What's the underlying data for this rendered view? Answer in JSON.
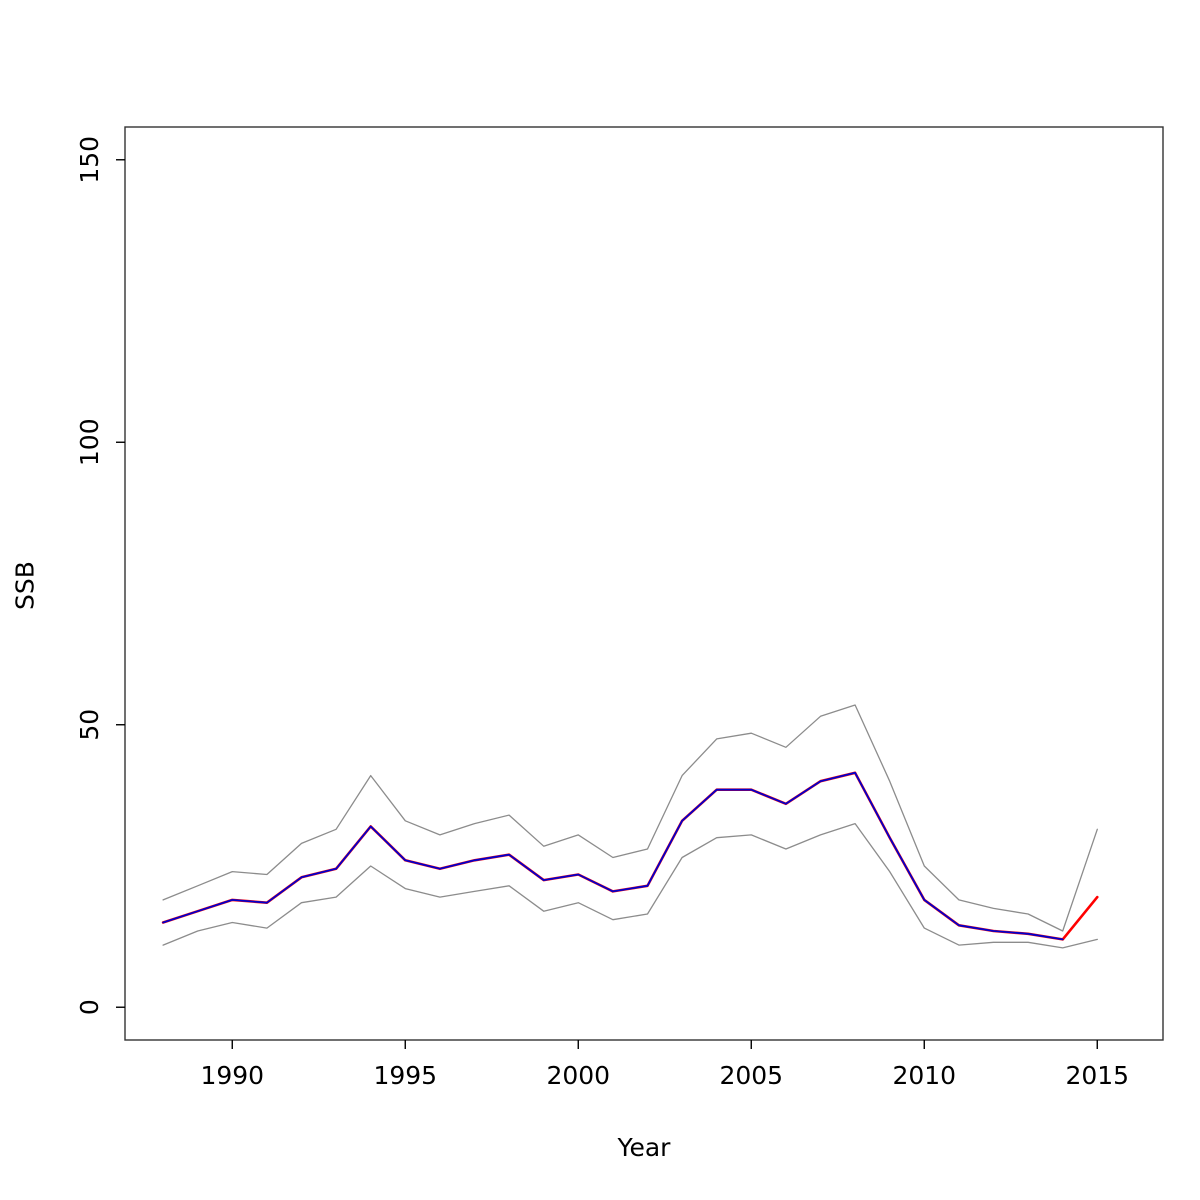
{
  "chart_data": {
    "type": "line",
    "title": "",
    "xlabel": "Year",
    "ylabel": "SSB",
    "grid": false,
    "legend": "none",
    "xlim": [
      1986.9,
      2016.9
    ],
    "ylim": [
      -5.8,
      155.8
    ],
    "xticks": [
      1990,
      1995,
      2000,
      2005,
      2010,
      2015
    ],
    "yticks": [
      0,
      50,
      100,
      150
    ],
    "x": [
      1988,
      1989,
      1990,
      1991,
      1992,
      1993,
      1994,
      1995,
      1996,
      1997,
      1998,
      1999,
      2000,
      2001,
      2002,
      2003,
      2004,
      2005,
      2006,
      2007,
      2008,
      2009,
      2010,
      2011,
      2012,
      2013,
      2014,
      2015
    ],
    "series": [
      {
        "name": "upper-ci",
        "color": "#8C8C8C",
        "width": 1.3,
        "values": [
          19,
          21.5,
          24,
          23.5,
          29,
          31.5,
          41,
          33,
          30.5,
          32.5,
          34,
          28.5,
          30.5,
          26.5,
          28,
          41,
          47.5,
          48.5,
          46,
          51.5,
          53.5,
          40,
          25,
          19,
          17.5,
          16.5,
          13.5,
          31.5
        ]
      },
      {
        "name": "lower-ci",
        "color": "#8C8C8C",
        "width": 1.3,
        "values": [
          11,
          13.5,
          15,
          14,
          18.5,
          19.5,
          25,
          21,
          19.5,
          20.5,
          21.5,
          17,
          18.5,
          15.5,
          16.5,
          26.5,
          30,
          30.5,
          28,
          30.5,
          32.5,
          24,
          14,
          11,
          11.5,
          11.5,
          10.5,
          12
        ]
      },
      {
        "name": "ssb-estimate-red",
        "color": "#FF0000",
        "width": 2.6,
        "values": [
          15,
          17,
          19,
          18.5,
          23,
          24.5,
          32,
          26,
          24.5,
          26,
          27,
          22.5,
          23.5,
          20.5,
          21.5,
          33,
          38.5,
          38.5,
          36,
          40,
          41.5,
          30,
          19,
          14.5,
          13.5,
          13,
          12,
          19.5
        ]
      },
      {
        "name": "ssb-estimate-blue",
        "color": "#0000CC",
        "width": 1.8,
        "values": [
          15,
          17,
          19,
          18.5,
          23,
          24.5,
          32,
          26,
          24.5,
          26,
          27,
          22.5,
          23.5,
          20.5,
          21.5,
          33,
          38.5,
          38.5,
          36,
          40,
          41.5,
          30,
          19,
          14.5,
          13.5,
          13,
          12,
          null
        ]
      }
    ]
  },
  "axis_color": "#000000",
  "box_color": "#333333"
}
